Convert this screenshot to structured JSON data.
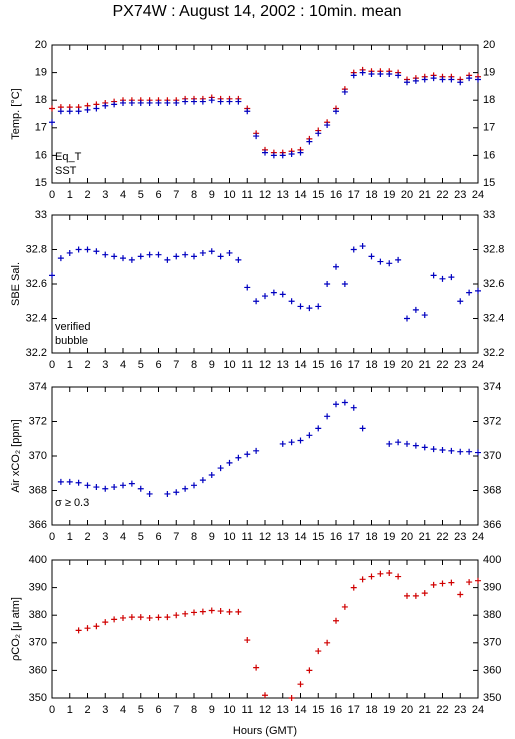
{
  "title": "PX74W : August 14, 2002 : 10min. mean",
  "x_label": "Hours (GMT)",
  "chart_data": [
    {
      "type": "scatter",
      "y_label": "Temp. [°C]",
      "x": [
        0,
        0.5,
        1,
        1.5,
        2,
        2.5,
        3,
        3.5,
        4,
        4.5,
        5,
        5.5,
        6,
        6.5,
        7,
        7.5,
        8,
        8.5,
        9,
        9.5,
        10,
        10.5,
        11,
        11.5,
        12,
        12.5,
        13,
        13.5,
        14,
        14.5,
        15,
        15.5,
        16,
        16.5,
        17,
        17.5,
        18,
        18.5,
        19,
        19.5,
        20,
        20.5,
        21,
        21.5,
        22,
        22.5,
        23,
        23.5,
        24
      ],
      "series": [
        {
          "name": "Eq_T",
          "color": "#d00000",
          "values": [
            17.7,
            17.75,
            17.75,
            17.75,
            17.8,
            17.85,
            17.9,
            17.95,
            18.0,
            18.0,
            18.0,
            18.0,
            18.0,
            18.0,
            18.0,
            18.05,
            18.05,
            18.05,
            18.1,
            18.05,
            18.05,
            18.05,
            17.7,
            16.8,
            16.2,
            16.1,
            16.1,
            16.15,
            16.2,
            16.6,
            16.9,
            17.2,
            17.7,
            18.4,
            19.0,
            19.1,
            19.05,
            19.05,
            19.05,
            19.0,
            18.75,
            18.8,
            18.85,
            18.9,
            18.85,
            18.85,
            18.75,
            18.9,
            18.85
          ]
        },
        {
          "name": "SST",
          "color": "#0000c0",
          "values": [
            17.2,
            17.6,
            17.6,
            17.6,
            17.65,
            17.7,
            17.8,
            17.85,
            17.9,
            17.9,
            17.9,
            17.9,
            17.9,
            17.9,
            17.9,
            17.95,
            17.95,
            17.95,
            18.0,
            17.95,
            17.95,
            17.95,
            17.6,
            16.7,
            16.1,
            16.0,
            16.0,
            16.05,
            16.1,
            16.5,
            16.8,
            17.1,
            17.6,
            18.3,
            18.9,
            19.0,
            18.95,
            18.95,
            18.95,
            18.9,
            18.65,
            18.7,
            18.75,
            18.8,
            18.75,
            18.75,
            18.65,
            18.8,
            18.75
          ]
        }
      ],
      "xlim": [
        0,
        24
      ],
      "xticks": [
        0,
        1,
        2,
        3,
        4,
        5,
        6,
        7,
        8,
        9,
        10,
        11,
        12,
        13,
        14,
        15,
        16,
        17,
        18,
        19,
        20,
        21,
        22,
        23,
        24
      ],
      "ylim": [
        15,
        20
      ],
      "yticks": [
        15,
        16,
        17,
        18,
        19,
        20
      ]
    },
    {
      "type": "scatter",
      "y_label": "SBE Sal.",
      "x": [
        0,
        0.5,
        1,
        1.5,
        2,
        2.5,
        3,
        3.5,
        4,
        4.5,
        5,
        5.5,
        6,
        6.5,
        7,
        7.5,
        8,
        8.5,
        9,
        9.5,
        10,
        10.5,
        11,
        11.5,
        12,
        12.5,
        13,
        13.5,
        14,
        14.5,
        15,
        15.5,
        16,
        16.5,
        17,
        17.5,
        18,
        18.5,
        19,
        19.5,
        20,
        20.5,
        21,
        21.5,
        22,
        22.5,
        23,
        23.5,
        24
      ],
      "series": [
        {
          "name": "verified",
          "color": "#0000c0",
          "values": [
            32.65,
            32.75,
            32.78,
            32.8,
            32.8,
            32.79,
            32.77,
            32.76,
            32.75,
            32.74,
            32.76,
            32.77,
            32.77,
            32.74,
            32.76,
            32.77,
            32.76,
            32.78,
            32.79,
            32.76,
            32.78,
            32.74,
            32.58,
            32.5,
            32.53,
            32.55,
            32.54,
            32.5,
            32.47,
            32.46,
            32.47,
            32.6,
            32.7,
            32.6,
            32.8,
            32.82,
            32.76,
            32.73,
            32.72,
            32.74,
            32.4,
            32.45,
            32.42,
            32.65,
            32.63,
            32.64,
            32.5,
            32.55,
            32.56
          ]
        },
        {
          "name": "bubble",
          "color": "#d000d0",
          "values": []
        }
      ],
      "xlim": [
        0,
        24
      ],
      "xticks": [
        0,
        1,
        2,
        3,
        4,
        5,
        6,
        7,
        8,
        9,
        10,
        11,
        12,
        13,
        14,
        15,
        16,
        17,
        18,
        19,
        20,
        21,
        22,
        23,
        24
      ],
      "ylim": [
        32.2,
        33
      ],
      "yticks": [
        32.2,
        32.4,
        32.6,
        32.8,
        33
      ]
    },
    {
      "type": "scatter",
      "y_label": "Air xCO₂ [ppm]",
      "annotation": "σ ≥ 0.3",
      "annotation_color": "#d000d0",
      "x": [
        0,
        0.5,
        1,
        1.5,
        2,
        2.5,
        3,
        3.5,
        4,
        4.5,
        5,
        5.5,
        6,
        6.5,
        7,
        7.5,
        8,
        8.5,
        9,
        9.5,
        10,
        10.5,
        11,
        11.5,
        12,
        12.5,
        13,
        13.5,
        14,
        14.5,
        15,
        15.5,
        16,
        16.5,
        17,
        17.5,
        18,
        18.5,
        19,
        19.5,
        20,
        20.5,
        21,
        21.5,
        22,
        22.5,
        23,
        23.5,
        24
      ],
      "series": [
        {
          "color": "#0000c0",
          "values": [
            null,
            368.5,
            368.5,
            368.45,
            368.3,
            368.2,
            368.1,
            368.2,
            368.3,
            368.4,
            368.1,
            367.8,
            null,
            367.8,
            367.9,
            368.1,
            368.3,
            368.6,
            368.9,
            369.3,
            369.6,
            369.9,
            370.1,
            370.3,
            null,
            null,
            370.7,
            370.8,
            370.9,
            371.2,
            371.6,
            372.3,
            373.0,
            373.1,
            372.8,
            371.6,
            null,
            null,
            370.7,
            370.8,
            370.7,
            370.6,
            370.5,
            370.4,
            370.35,
            370.3,
            370.25,
            370.25,
            370.2
          ]
        }
      ],
      "xlim": [
        0,
        24
      ],
      "xticks": [
        0,
        1,
        2,
        3,
        4,
        5,
        6,
        7,
        8,
        9,
        10,
        11,
        12,
        13,
        14,
        15,
        16,
        17,
        18,
        19,
        20,
        21,
        22,
        23,
        24
      ],
      "ylim": [
        366,
        374
      ],
      "yticks": [
        366,
        368,
        370,
        372,
        374
      ]
    },
    {
      "type": "scatter",
      "y_label": "ρCO₂ [μ atm]",
      "x": [
        0,
        0.5,
        1,
        1.5,
        2,
        2.5,
        3,
        3.5,
        4,
        4.5,
        5,
        5.5,
        6,
        6.5,
        7,
        7.5,
        8,
        8.5,
        9,
        9.5,
        10,
        10.5,
        11,
        11.5,
        12,
        12.5,
        13,
        13.5,
        14,
        14.5,
        15,
        15.5,
        16,
        16.5,
        17,
        17.5,
        18,
        18.5,
        19,
        19.5,
        20,
        20.5,
        21,
        21.5,
        22,
        22.5,
        23,
        23.5,
        24
      ],
      "series": [
        {
          "color": "#d00000",
          "values": [
            null,
            null,
            null,
            374.5,
            375.3,
            376,
            377.5,
            378.5,
            379,
            379.3,
            379.3,
            379,
            379.2,
            379.3,
            380,
            380.5,
            381,
            381.3,
            381.7,
            381.5,
            381.2,
            381.2,
            371,
            361,
            351,
            null,
            null,
            350,
            355,
            360,
            367,
            370,
            378,
            383,
            390,
            393,
            394,
            395,
            395.3,
            394,
            387,
            387,
            388,
            391,
            391.5,
            391.8,
            387.5,
            392,
            392.5
          ]
        }
      ],
      "xlim": [
        0,
        24
      ],
      "xticks": [
        0,
        1,
        2,
        3,
        4,
        5,
        6,
        7,
        8,
        9,
        10,
        11,
        12,
        13,
        14,
        15,
        16,
        17,
        18,
        19,
        20,
        21,
        22,
        23,
        24
      ],
      "ylim": [
        350,
        400
      ],
      "yticks": [
        350,
        360,
        370,
        380,
        390,
        400
      ]
    }
  ]
}
